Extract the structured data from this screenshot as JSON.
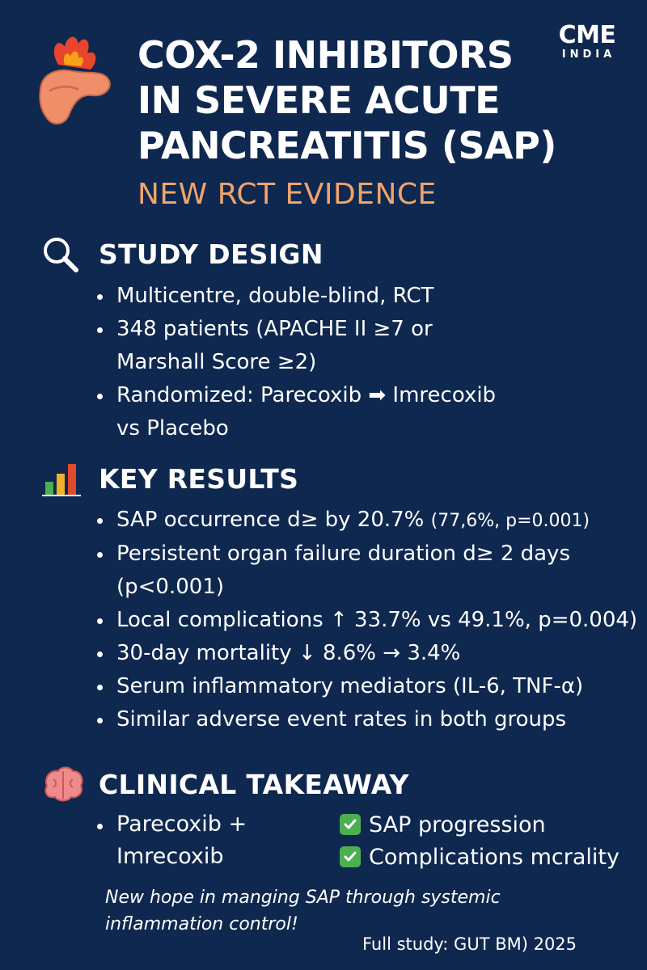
{
  "brand": {
    "main": "CME",
    "sub": "INDIA"
  },
  "header": {
    "title_lines": [
      "COX-2 INHIBITORS",
      "IN SEVERE ACUTE",
      "PANCREATITIS (SAP)"
    ],
    "subtitle": "NEW RCT EVIDENCE",
    "icon": "pancreas-fire-icon"
  },
  "study_design": {
    "title": "STUDY DESIGN",
    "icon": "magnifier-icon",
    "bullets": [
      "Multicentre, double-blind, RCT",
      "348 patients (APACHE II ≥7 or",
      "Marshall Score ≥2)",
      "Randomized: Parecoxib ➡ Imrecoxib",
      "vs Placebo"
    ]
  },
  "key_results": {
    "title": "KEY RESULTS",
    "icon": "bar-chart-icon",
    "bullets": [
      {
        "main": "SAP occurrence d≥ by 20.7% ",
        "small": "(77,6%, p=0.001)"
      },
      {
        "main": "Persistent organ failure duration d≥ 2 days",
        "small": ""
      },
      {
        "main": "(p<0.001)",
        "small": ""
      },
      {
        "main": "Local complications ↑ 33.7% vs 49.1%, p=0.004)",
        "small": ""
      },
      {
        "main": "30-day mortality ↓ 8.6% → 3.4%",
        "small": ""
      },
      {
        "main": "Serum inflammatory mediators (IL-6, TNF-α)",
        "small": ""
      },
      {
        "main": "Similar adverse event rates in both groups",
        "small": ""
      }
    ]
  },
  "takeaway": {
    "title": "CLINICAL TAKEAWAY",
    "icon": "brain-icon",
    "left_lines": [
      "Parecoxib +",
      "Imrecoxib"
    ],
    "checks": [
      "SAP progression",
      "Complications mcrality"
    ],
    "check_icon": "check-mark-icon"
  },
  "hope_lines": [
    "New hope in manging SAP through systemic",
    "inflammation control!"
  ],
  "source": "Full study: GUT BM) 2025",
  "colors": {
    "background": "#0f2850",
    "accent": "#f0a46c",
    "check": "#4caf50"
  }
}
